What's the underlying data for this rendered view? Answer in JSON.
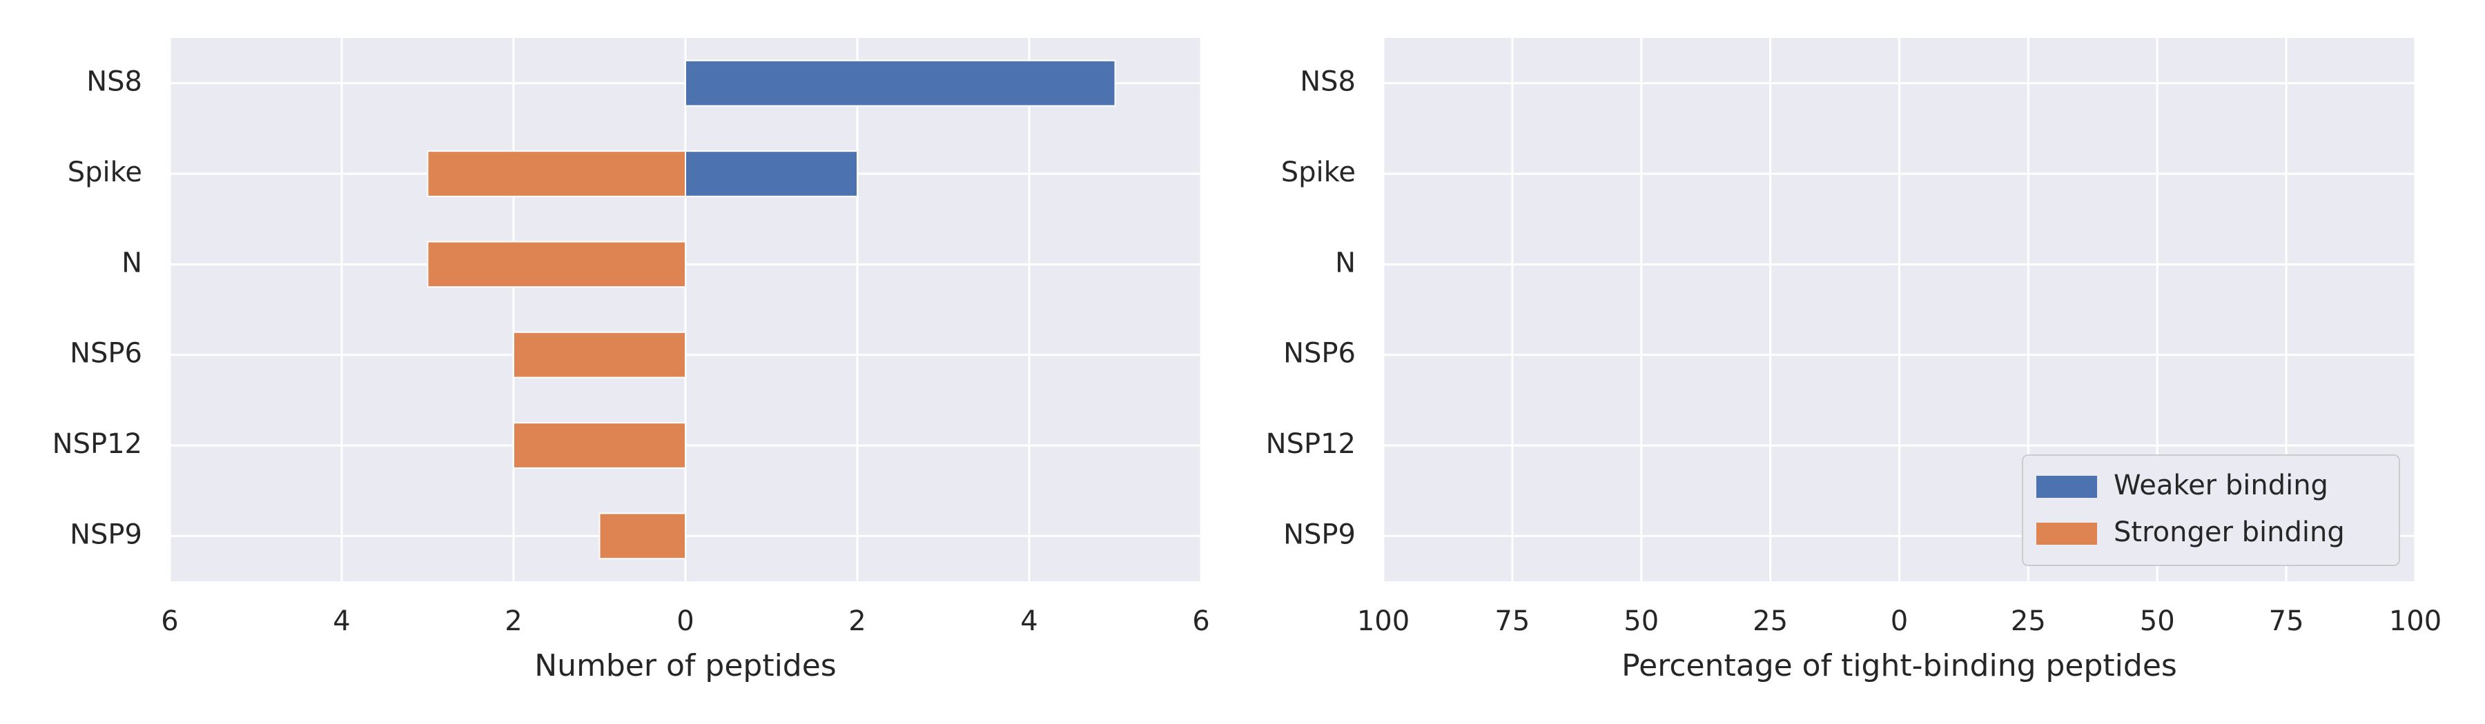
{
  "chart_data": [
    {
      "type": "bar",
      "orientation": "horizontal",
      "xlabel": "Number of peptides",
      "categories": [
        "NS8",
        "Spike",
        "N",
        "NSP6",
        "NSP12",
        "NSP9"
      ],
      "series": [
        {
          "name": "Weaker binding",
          "color": "#4c72b0",
          "values": [
            5,
            2,
            0,
            0,
            0,
            0
          ]
        },
        {
          "name": "Stronger binding",
          "color": "#dd8452",
          "values": [
            0,
            -3,
            -3,
            -2,
            -2,
            -1
          ]
        }
      ],
      "xlim": [
        -6,
        6
      ],
      "xticks": [
        {
          "value": -6,
          "label": "6"
        },
        {
          "value": -4,
          "label": "4"
        },
        {
          "value": -2,
          "label": "2"
        },
        0,
        2,
        4,
        6
      ],
      "grid": true,
      "legend": false
    },
    {
      "type": "bar",
      "orientation": "horizontal",
      "xlabel": "Percentage of tight-binding peptides",
      "categories": [
        "NS8",
        "Spike",
        "N",
        "NSP6",
        "NSP12",
        "NSP9"
      ],
      "series": [
        {
          "name": "Weaker binding",
          "color": "#4c72b0",
          "values": [
            null,
            null,
            null,
            null,
            null,
            null
          ]
        },
        {
          "name": "Stronger binding",
          "color": "#dd8452",
          "values": [
            null,
            null,
            null,
            null,
            null,
            null
          ]
        }
      ],
      "xlim": [
        -100,
        100
      ],
      "xticks": [
        {
          "value": -100,
          "label": "100"
        },
        {
          "value": -75,
          "label": "75"
        },
        {
          "value": -50,
          "label": "50"
        },
        {
          "value": -25,
          "label": "25"
        },
        0,
        25,
        50,
        75,
        100
      ],
      "grid": true,
      "legend": "lower right"
    }
  ]
}
